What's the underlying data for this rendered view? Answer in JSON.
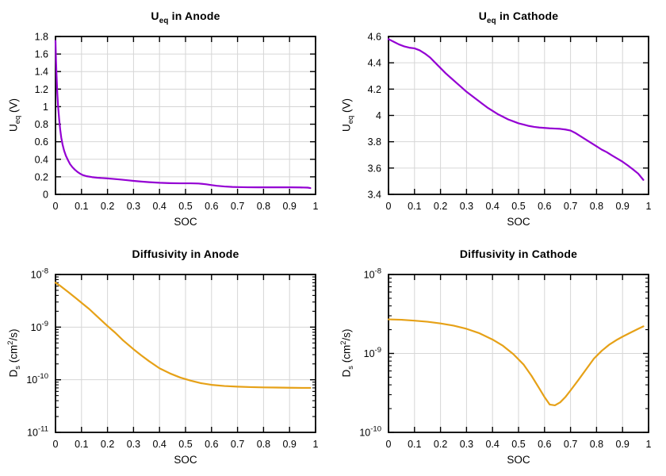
{
  "figure": {
    "background": "#ffffff",
    "grid_color": "#d6d6d6",
    "axis_color": "#000000",
    "ueq_line_color": "#9400d3",
    "diffusivity_line_color": "#e6a117"
  },
  "chart_data": [
    {
      "id": "ueq-anode",
      "type": "line",
      "title_text": "U_eq in Anode",
      "title_rich": [
        {
          "t": "U"
        },
        {
          "t": "eq",
          "sub": true
        },
        {
          "t": " in Anode"
        }
      ],
      "xlabel": "SOC",
      "ylabel_text": "U_eq (V)",
      "ylabel_rich": [
        {
          "t": "U"
        },
        {
          "t": "eq",
          "sub": true
        },
        {
          "t": " (V)"
        }
      ],
      "color": "#9400d3",
      "yscale": "linear",
      "xlim": [
        0,
        1
      ],
      "ylim": [
        0,
        1.8
      ],
      "x_ticks": [
        0,
        0.1,
        0.2,
        0.3,
        0.4,
        0.5,
        0.6,
        0.7,
        0.8,
        0.9,
        1
      ],
      "x_tick_labels": [
        "0",
        "0.1",
        "0.2",
        "0.3",
        "0.4",
        "0.5",
        "0.6",
        "0.7",
        "0.8",
        "0.9",
        "1"
      ],
      "y_ticks": [
        0,
        0.2,
        0.4,
        0.6,
        0.8,
        1,
        1.2,
        1.4,
        1.6,
        1.8
      ],
      "y_tick_labels": [
        "0",
        "0.2",
        "0.4",
        "0.6",
        "0.8",
        "1",
        "1.2",
        "1.4",
        "1.6",
        "1.8"
      ],
      "grid": true,
      "x": [
        0,
        0.002,
        0.004,
        0.007,
        0.01,
        0.014,
        0.018,
        0.022,
        0.027,
        0.033,
        0.04,
        0.048,
        0.056,
        0.065,
        0.075,
        0.085,
        0.095,
        0.105,
        0.12,
        0.14,
        0.16,
        0.18,
        0.2,
        0.22,
        0.25,
        0.28,
        0.3,
        0.33,
        0.36,
        0.4,
        0.44,
        0.48,
        0.52,
        0.55,
        0.58,
        0.6,
        0.62,
        0.65,
        0.68,
        0.7,
        0.74,
        0.78,
        0.82,
        0.86,
        0.9,
        0.94,
        0.97,
        0.98
      ],
      "y": [
        1.75,
        1.52,
        1.36,
        1.15,
        1.0,
        0.86,
        0.74,
        0.65,
        0.57,
        0.5,
        0.44,
        0.39,
        0.345,
        0.31,
        0.28,
        0.255,
        0.235,
        0.22,
        0.207,
        0.197,
        0.19,
        0.186,
        0.182,
        0.177,
        0.169,
        0.16,
        0.154,
        0.146,
        0.139,
        0.132,
        0.128,
        0.126,
        0.126,
        0.124,
        0.115,
        0.106,
        0.098,
        0.09,
        0.085,
        0.083,
        0.081,
        0.08,
        0.08,
        0.08,
        0.08,
        0.079,
        0.077,
        0.072
      ]
    },
    {
      "id": "ueq-cathode",
      "type": "line",
      "title_text": "U_eq in Cathode",
      "title_rich": [
        {
          "t": "U"
        },
        {
          "t": "eq",
          "sub": true
        },
        {
          "t": " in Cathode"
        }
      ],
      "xlabel": "SOC",
      "ylabel_text": "U_eq (V)",
      "ylabel_rich": [
        {
          "t": "U"
        },
        {
          "t": "eq",
          "sub": true
        },
        {
          "t": " (V)"
        }
      ],
      "color": "#9400d3",
      "yscale": "linear",
      "xlim": [
        0,
        1
      ],
      "ylim": [
        3.4,
        4.6
      ],
      "x_ticks": [
        0,
        0.1,
        0.2,
        0.3,
        0.4,
        0.5,
        0.6,
        0.7,
        0.8,
        0.9,
        1
      ],
      "x_tick_labels": [
        "0",
        "0.1",
        "0.2",
        "0.3",
        "0.4",
        "0.5",
        "0.6",
        "0.7",
        "0.8",
        "0.9",
        "1"
      ],
      "y_ticks": [
        3.4,
        3.6,
        3.8,
        4,
        4.2,
        4.4,
        4.6
      ],
      "y_tick_labels": [
        "3.4",
        "3.6",
        "3.8",
        "4",
        "4.2",
        "4.4",
        "4.6"
      ],
      "grid": true,
      "x": [
        0,
        0.02,
        0.04,
        0.06,
        0.08,
        0.1,
        0.12,
        0.14,
        0.16,
        0.18,
        0.2,
        0.22,
        0.24,
        0.26,
        0.28,
        0.3,
        0.32,
        0.34,
        0.36,
        0.38,
        0.4,
        0.42,
        0.44,
        0.46,
        0.48,
        0.5,
        0.52,
        0.54,
        0.56,
        0.58,
        0.6,
        0.62,
        0.64,
        0.66,
        0.68,
        0.7,
        0.72,
        0.74,
        0.76,
        0.78,
        0.8,
        0.82,
        0.84,
        0.86,
        0.88,
        0.9,
        0.92,
        0.94,
        0.96,
        0.98
      ],
      "y": [
        4.58,
        4.56,
        4.54,
        4.525,
        4.515,
        4.51,
        4.495,
        4.47,
        4.44,
        4.4,
        4.36,
        4.32,
        4.285,
        4.25,
        4.215,
        4.18,
        4.15,
        4.12,
        4.09,
        4.06,
        4.035,
        4.01,
        3.99,
        3.97,
        3.955,
        3.94,
        3.93,
        3.92,
        3.913,
        3.908,
        3.905,
        3.902,
        3.9,
        3.898,
        3.893,
        3.885,
        3.865,
        3.84,
        3.815,
        3.79,
        3.765,
        3.74,
        3.72,
        3.695,
        3.672,
        3.648,
        3.62,
        3.59,
        3.558,
        3.51
      ]
    },
    {
      "id": "diffusivity-anode",
      "type": "line",
      "title_text": "Diffusivity in Anode",
      "title_rich": [
        {
          "t": "Diffusivity in Anode"
        }
      ],
      "xlabel": "SOC",
      "ylabel_text": "D_s (cm^2/s)",
      "ylabel_rich": [
        {
          "t": "D"
        },
        {
          "t": "s",
          "sub": true
        },
        {
          "t": " (cm"
        },
        {
          "t": "2",
          "sup": true
        },
        {
          "t": "/s)"
        }
      ],
      "color": "#e6a117",
      "yscale": "log",
      "xlim": [
        0,
        1
      ],
      "ylim_exp": [
        -11,
        -8
      ],
      "x_ticks": [
        0,
        0.1,
        0.2,
        0.3,
        0.4,
        0.5,
        0.6,
        0.7,
        0.8,
        0.9,
        1
      ],
      "x_tick_labels": [
        "0",
        "0.1",
        "0.2",
        "0.3",
        "0.4",
        "0.5",
        "0.6",
        "0.7",
        "0.8",
        "0.9",
        "1"
      ],
      "y_ticks": [
        1e-11,
        1e-10,
        1e-09,
        1e-08
      ],
      "y_tick_labels": [
        "10^-11",
        "10^-10",
        "10^-9",
        "10^-8"
      ],
      "grid": true,
      "x": [
        0,
        0.02,
        0.05,
        0.08,
        0.1,
        0.13,
        0.16,
        0.2,
        0.23,
        0.26,
        0.3,
        0.33,
        0.36,
        0.4,
        0.44,
        0.48,
        0.52,
        0.56,
        0.6,
        0.65,
        0.7,
        0.75,
        0.8,
        0.85,
        0.9,
        0.95,
        0.98
      ],
      "y": [
        7e-09,
        6e-09,
        4.6e-09,
        3.5e-09,
        2.9e-09,
        2.2e-09,
        1.6e-09,
        1.05e-09,
        7.8e-10,
        5.6e-10,
        3.8e-10,
        2.9e-10,
        2.25e-10,
        1.65e-10,
        1.32e-10,
        1.1e-10,
        9.6e-11,
        8.6e-11,
        8e-11,
        7.6e-11,
        7.4e-11,
        7.25e-11,
        7.15e-11,
        7.1e-11,
        7.05e-11,
        7e-11,
        7e-11
      ]
    },
    {
      "id": "diffusivity-cathode",
      "type": "line",
      "title_text": "Diffusivity in Cathode",
      "title_rich": [
        {
          "t": "Diffusivity in Cathode"
        }
      ],
      "xlabel": "SOC",
      "ylabel_text": "D_s (cm^2/s)",
      "ylabel_rich": [
        {
          "t": "D"
        },
        {
          "t": "s",
          "sub": true
        },
        {
          "t": " (cm"
        },
        {
          "t": "2",
          "sup": true
        },
        {
          "t": "/s)"
        }
      ],
      "color": "#e6a117",
      "yscale": "log",
      "xlim": [
        0,
        1
      ],
      "ylim_exp": [
        -10,
        -8
      ],
      "x_ticks": [
        0,
        0.1,
        0.2,
        0.3,
        0.4,
        0.5,
        0.6,
        0.7,
        0.8,
        0.9,
        1
      ],
      "x_tick_labels": [
        "0",
        "0.1",
        "0.2",
        "0.3",
        "0.4",
        "0.5",
        "0.6",
        "0.7",
        "0.8",
        "0.9",
        "1"
      ],
      "y_ticks": [
        1e-10,
        1e-09,
        1e-08
      ],
      "y_tick_labels": [
        "10^-10",
        "10^-9",
        "10^-8"
      ],
      "grid": true,
      "x": [
        0,
        0.05,
        0.1,
        0.15,
        0.2,
        0.25,
        0.3,
        0.35,
        0.4,
        0.44,
        0.48,
        0.52,
        0.55,
        0.58,
        0.6,
        0.62,
        0.64,
        0.66,
        0.68,
        0.7,
        0.73,
        0.76,
        0.79,
        0.82,
        0.85,
        0.88,
        0.9,
        0.93,
        0.96,
        0.98
      ],
      "y": [
        2.7e-09,
        2.67e-09,
        2.6e-09,
        2.52e-09,
        2.4e-09,
        2.25e-09,
        2.05e-09,
        1.8e-09,
        1.5e-09,
        1.25e-09,
        9.8e-10,
        7.2e-10,
        5.2e-10,
        3.6e-10,
        2.8e-10,
        2.25e-10,
        2.2e-10,
        2.4e-10,
        2.8e-10,
        3.4e-10,
        4.6e-10,
        6.3e-10,
        8.6e-10,
        1.08e-09,
        1.3e-09,
        1.5e-09,
        1.63e-09,
        1.83e-09,
        2.05e-09,
        2.2e-09
      ]
    }
  ]
}
